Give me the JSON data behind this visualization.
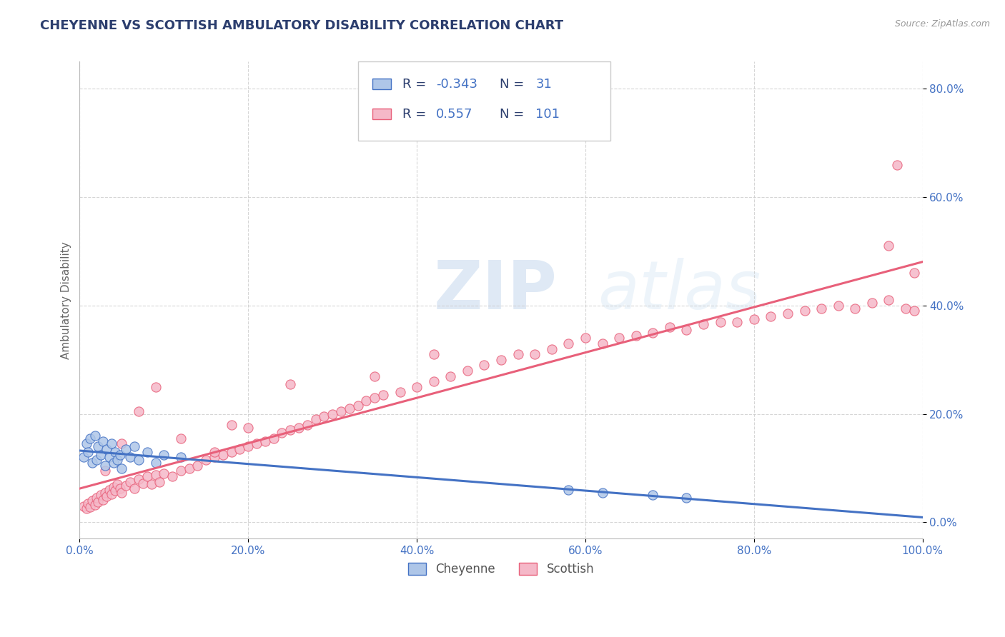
{
  "title": "CHEYENNE VS SCOTTISH AMBULATORY DISABILITY CORRELATION CHART",
  "source": "Source: ZipAtlas.com",
  "ylabel": "Ambulatory Disability",
  "xlim": [
    0.0,
    1.0
  ],
  "ylim": [
    -0.03,
    0.85
  ],
  "xticks": [
    0.0,
    0.2,
    0.4,
    0.6,
    0.8,
    1.0
  ],
  "xtick_labels": [
    "0.0%",
    "20.0%",
    "40.0%",
    "60.0%",
    "80.0%",
    "100.0%"
  ],
  "yticks": [
    0.0,
    0.2,
    0.4,
    0.6,
    0.8
  ],
  "ytick_labels": [
    "0.0%",
    "20.0%",
    "40.0%",
    "60.0%",
    "80.0%"
  ],
  "cheyenne_R": -0.343,
  "cheyenne_N": 31,
  "scottish_R": 0.557,
  "scottish_N": 101,
  "cheyenne_color": "#aec6e8",
  "scottish_color": "#f5b8c8",
  "cheyenne_line_color": "#4472c4",
  "scottish_line_color": "#e8607a",
  "legend_label_cheyenne": "Cheyenne",
  "legend_label_scottish": "Scottish",
  "background_color": "#ffffff",
  "grid_color": "#cccccc",
  "title_color": "#2c3e6e",
  "source_color": "#999999",
  "watermark_zip": "ZIP",
  "watermark_atlas": "atlas",
  "cheyenne_x": [
    0.005,
    0.008,
    0.01,
    0.012,
    0.015,
    0.018,
    0.02,
    0.022,
    0.025,
    0.028,
    0.03,
    0.032,
    0.035,
    0.038,
    0.04,
    0.042,
    0.045,
    0.048,
    0.05,
    0.055,
    0.06,
    0.065,
    0.07,
    0.08,
    0.09,
    0.1,
    0.12,
    0.58,
    0.62,
    0.68,
    0.72
  ],
  "cheyenne_y": [
    0.12,
    0.145,
    0.13,
    0.155,
    0.11,
    0.16,
    0.115,
    0.14,
    0.125,
    0.15,
    0.105,
    0.135,
    0.12,
    0.145,
    0.11,
    0.13,
    0.115,
    0.125,
    0.1,
    0.135,
    0.12,
    0.14,
    0.115,
    0.13,
    0.11,
    0.125,
    0.12,
    0.06,
    0.055,
    0.05,
    0.045
  ],
  "scottish_x": [
    0.005,
    0.008,
    0.01,
    0.012,
    0.015,
    0.018,
    0.02,
    0.022,
    0.025,
    0.028,
    0.03,
    0.032,
    0.035,
    0.038,
    0.04,
    0.042,
    0.045,
    0.048,
    0.05,
    0.055,
    0.06,
    0.065,
    0.07,
    0.075,
    0.08,
    0.085,
    0.09,
    0.095,
    0.1,
    0.11,
    0.12,
    0.13,
    0.14,
    0.15,
    0.16,
    0.17,
    0.18,
    0.19,
    0.2,
    0.21,
    0.22,
    0.23,
    0.24,
    0.25,
    0.26,
    0.27,
    0.28,
    0.29,
    0.3,
    0.31,
    0.32,
    0.33,
    0.34,
    0.35,
    0.36,
    0.38,
    0.4,
    0.42,
    0.44,
    0.46,
    0.48,
    0.5,
    0.52,
    0.54,
    0.56,
    0.58,
    0.6,
    0.62,
    0.64,
    0.66,
    0.68,
    0.7,
    0.72,
    0.74,
    0.76,
    0.78,
    0.8,
    0.82,
    0.84,
    0.86,
    0.88,
    0.9,
    0.92,
    0.94,
    0.96,
    0.98,
    0.99,
    0.03,
    0.05,
    0.07,
    0.09,
    0.35,
    0.42,
    0.18,
    0.25,
    0.12,
    0.16,
    0.2,
    0.97,
    0.96,
    0.99
  ],
  "scottish_y": [
    0.03,
    0.025,
    0.035,
    0.028,
    0.04,
    0.032,
    0.045,
    0.038,
    0.05,
    0.042,
    0.055,
    0.048,
    0.06,
    0.052,
    0.065,
    0.058,
    0.07,
    0.062,
    0.055,
    0.068,
    0.075,
    0.062,
    0.08,
    0.072,
    0.085,
    0.07,
    0.088,
    0.075,
    0.09,
    0.085,
    0.095,
    0.1,
    0.105,
    0.115,
    0.12,
    0.125,
    0.13,
    0.135,
    0.14,
    0.145,
    0.15,
    0.155,
    0.165,
    0.17,
    0.175,
    0.18,
    0.19,
    0.195,
    0.2,
    0.205,
    0.21,
    0.215,
    0.225,
    0.23,
    0.235,
    0.24,
    0.25,
    0.26,
    0.27,
    0.28,
    0.29,
    0.3,
    0.31,
    0.31,
    0.32,
    0.33,
    0.34,
    0.33,
    0.34,
    0.345,
    0.35,
    0.36,
    0.355,
    0.365,
    0.37,
    0.37,
    0.375,
    0.38,
    0.385,
    0.39,
    0.395,
    0.4,
    0.395,
    0.405,
    0.41,
    0.395,
    0.39,
    0.095,
    0.145,
    0.205,
    0.25,
    0.27,
    0.31,
    0.18,
    0.255,
    0.155,
    0.13,
    0.175,
    0.66,
    0.51,
    0.46
  ]
}
